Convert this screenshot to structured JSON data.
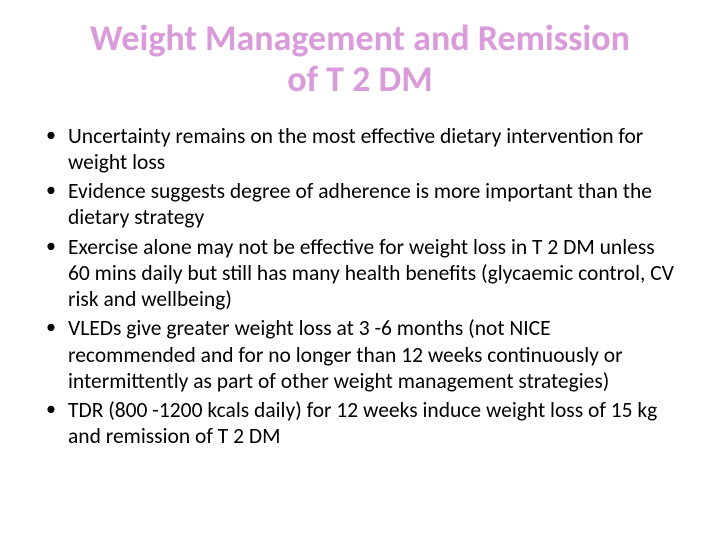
{
  "slide": {
    "title": "Weight Management and Remission of T 2 DM",
    "title_color": "#d99bd9",
    "body_color": "#000000",
    "background_color": "#ffffff",
    "title_fontsize": 36,
    "body_fontsize": 21.5,
    "bullets": [
      "Uncertainty remains on the most effective dietary intervention for weight loss",
      "Evidence suggests degree of adherence is more important than the dietary strategy",
      "Exercise alone may not be effective for weight loss in T 2 DM unless 60 mins daily but still has many health benefits (glycaemic control, CV risk and wellbeing)",
      "VLEDs give greater weight loss at 3 -6 months (not NICE recommended and for no longer than 12 weeks continuously or intermittently as part of other weight management strategies)",
      "TDR (800 -1200 kcals daily) for 12 weeks induce weight loss of 15 kg and remission of T 2 DM"
    ]
  }
}
